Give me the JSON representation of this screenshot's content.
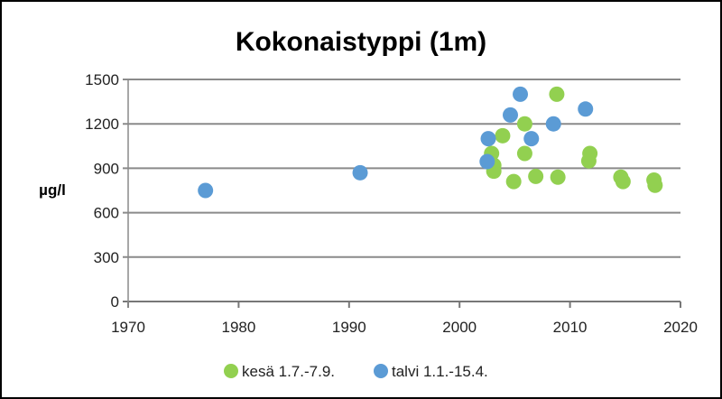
{
  "chart_data": {
    "type": "scatter",
    "title": "Kokonaistyppi (1m)",
    "xlabel": "",
    "ylabel": "µg/l",
    "xlim": [
      1970,
      2020
    ],
    "ylim": [
      0,
      1500
    ],
    "xticks": [
      1970,
      1980,
      1990,
      2000,
      2010,
      2020
    ],
    "yticks": [
      0,
      300,
      600,
      900,
      1200,
      1500
    ],
    "grid": "horizontal",
    "legend_position": "bottom",
    "series": [
      {
        "name": "kesä 1.7.-7.9.",
        "color": "#92d050",
        "points": [
          [
            2008.8,
            1400
          ],
          [
            2005.9,
            1200
          ],
          [
            2003.9,
            1120
          ],
          [
            2002.9,
            1000
          ],
          [
            2005.9,
            1000
          ],
          [
            2011.8,
            1000
          ],
          [
            2011.7,
            950
          ],
          [
            2003.1,
            920
          ],
          [
            2003.1,
            880
          ],
          [
            2004.9,
            810
          ],
          [
            2006.9,
            845
          ],
          [
            2008.9,
            840
          ],
          [
            2014.6,
            840
          ],
          [
            2014.8,
            810
          ],
          [
            2017.6,
            820
          ],
          [
            2017.7,
            785
          ]
        ]
      },
      {
        "name": "talvi 1.1.-15.4.",
        "color": "#5b9bd5",
        "points": [
          [
            1977.0,
            750
          ],
          [
            1991.0,
            870
          ],
          [
            2005.5,
            1400
          ],
          [
            2004.6,
            1260
          ],
          [
            2011.4,
            1300
          ],
          [
            2008.5,
            1200
          ],
          [
            2002.6,
            1100
          ],
          [
            2006.5,
            1100
          ],
          [
            2002.5,
            945
          ]
        ]
      }
    ]
  }
}
